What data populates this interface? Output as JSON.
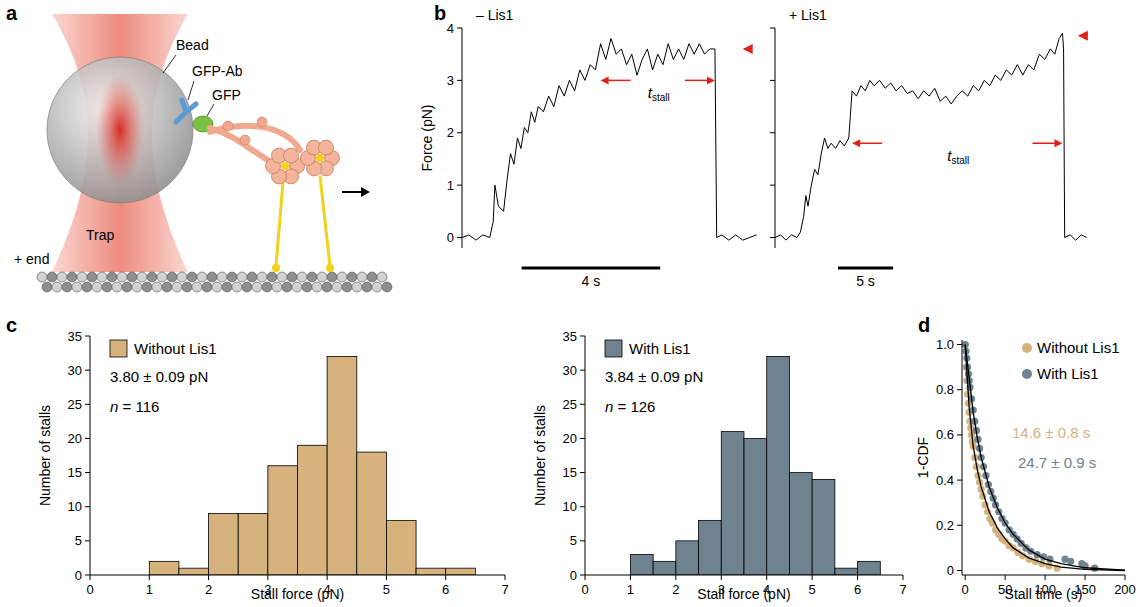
{
  "diagram": {
    "panel": "a",
    "labels": {
      "bead": "Bead",
      "antibody": "GFP-Ab",
      "gfp": "GFP",
      "trap": "Trap",
      "plus_end": "+ end"
    }
  },
  "chart_data": [
    {
      "panel": "b",
      "type": "line",
      "title": "– Lis1",
      "ylabel": "Force (pN)",
      "color": "#000000",
      "x": [
        0,
        0.2,
        0.4,
        0.6,
        0.8,
        0.9,
        0.95,
        1.05,
        1.2,
        1.3,
        1.4,
        1.5,
        1.6,
        1.7,
        1.8,
        1.9,
        2.0,
        2.1,
        2.2,
        2.35,
        2.5,
        2.65,
        2.8,
        2.95,
        3.1,
        3.25,
        3.4,
        3.55,
        3.7,
        3.85,
        4.0,
        4.15,
        4.3,
        4.45,
        4.6,
        4.75,
        4.9,
        5.05,
        5.2,
        5.35,
        5.5,
        5.65,
        5.8,
        5.95,
        6.1,
        6.25,
        6.4,
        6.55,
        6.7,
        6.85,
        7.0,
        7.15,
        7.3,
        7.35,
        7.5,
        7.7,
        7.9,
        8.1,
        8.3,
        8.5
      ],
      "values": [
        0.0,
        0.05,
        -0.05,
        0.05,
        0.0,
        0.3,
        1.0,
        0.6,
        0.5,
        1.1,
        1.6,
        1.4,
        1.9,
        1.7,
        2.1,
        2.0,
        2.4,
        2.2,
        2.5,
        2.4,
        2.7,
        2.5,
        2.9,
        2.7,
        3.0,
        2.8,
        3.2,
        3.0,
        3.3,
        3.2,
        3.7,
        3.4,
        3.8,
        3.5,
        3.6,
        3.3,
        3.5,
        3.1,
        3.4,
        3.6,
        3.2,
        3.5,
        3.3,
        3.7,
        3.4,
        3.6,
        3.4,
        3.7,
        3.5,
        3.7,
        3.5,
        3.6,
        3.6,
        0.0,
        0.05,
        -0.05,
        0.05,
        -0.05,
        0.0,
        0.05
      ],
      "xlim": [
        0,
        8.6
      ],
      "ylim": [
        -0.2,
        4
      ],
      "yticks": [
        0,
        1,
        2,
        3,
        4
      ],
      "tick_labels": "y",
      "scale_bar": {
        "length": 4,
        "label": "4 s"
      },
      "stall": {
        "start": 4.0,
        "end": 7.3,
        "force": 3.0,
        "label": "t",
        "label_sub": "stall",
        "color": "#e0201b"
      },
      "stall_marker": {
        "x": 8.1,
        "y": 3.6,
        "color": "#e0201b"
      }
    },
    {
      "type": "line",
      "title": "+ Lis1",
      "color": "#000000",
      "x": [
        0,
        0.5,
        1.0,
        1.5,
        2.0,
        2.3,
        2.6,
        2.8,
        3.0,
        3.3,
        3.6,
        3.9,
        4.2,
        4.5,
        4.8,
        5.1,
        5.5,
        5.9,
        6.3,
        6.7,
        7.0,
        7.4,
        7.8,
        8.2,
        8.6,
        9.0,
        9.5,
        10.0,
        10.5,
        11.0,
        11.5,
        12.0,
        12.5,
        13.0,
        13.5,
        14.0,
        14.5,
        15.0,
        15.5,
        16.0,
        16.5,
        17.0,
        17.5,
        18.0,
        18.5,
        19.0,
        19.5,
        20.0,
        20.5,
        21.0,
        21.5,
        22.0,
        22.5,
        23.0,
        23.5,
        24.0,
        24.5,
        25.0,
        25.4,
        25.8,
        26.1,
        26.2,
        26.3,
        26.8,
        27.3,
        27.8,
        28.3
      ],
      "values": [
        0,
        0.05,
        -0.05,
        0.05,
        0.0,
        0.1,
        0.4,
        0.8,
        0.6,
        1.0,
        1.3,
        1.2,
        1.6,
        1.9,
        1.7,
        1.8,
        1.7,
        1.85,
        1.75,
        1.9,
        2.8,
        2.7,
        2.9,
        2.8,
        3.0,
        2.9,
        3.0,
        2.85,
        2.95,
        2.8,
        2.9,
        2.75,
        2.8,
        2.65,
        2.8,
        2.7,
        2.85,
        2.6,
        2.7,
        2.55,
        2.7,
        2.8,
        2.7,
        2.9,
        2.8,
        3.0,
        2.9,
        3.1,
        3.0,
        3.2,
        3.1,
        3.3,
        3.1,
        3.3,
        3.2,
        3.5,
        3.4,
        3.6,
        3.5,
        3.8,
        3.9,
        3.6,
        0.0,
        0.05,
        -0.05,
        0.05,
        0.0
      ],
      "xlim": [
        0,
        28.6
      ],
      "ylim": [
        -0.2,
        4
      ],
      "yticks": [
        0,
        1,
        2,
        3,
        4
      ],
      "tick_labels": false,
      "scale_bar": {
        "length": 5,
        "label": "5 s"
      },
      "stall": {
        "start": 7.0,
        "end": 26.1,
        "force": 1.8,
        "label": "t",
        "label_sub": "stall",
        "color": "#e0201b"
      },
      "stall_marker": {
        "x": 27.5,
        "y": 3.85,
        "color": "#e0201b"
      }
    },
    {
      "panel": "c",
      "type": "histogram",
      "name": "Without Lis1",
      "color": "#d6b27c",
      "xlabel": "Stall force (pN)",
      "ylabel": "Number of stalls",
      "bins": [
        1,
        1.5,
        2,
        2.5,
        3,
        3.5,
        4,
        4.5,
        5,
        5.5,
        6,
        6.5
      ],
      "values": [
        2,
        1,
        9,
        9,
        16,
        19,
        32,
        18,
        8,
        1,
        1
      ],
      "xlim": [
        0,
        7
      ],
      "ylim": [
        0,
        35
      ],
      "xticks": [
        0,
        1,
        2,
        3,
        4,
        5,
        6,
        7
      ],
      "yticks": [
        0,
        5,
        10,
        15,
        20,
        25,
        30,
        35
      ],
      "legend": "upper left",
      "annotations": [
        "3.80 ± 0.09 pN",
        "n = 116"
      ]
    },
    {
      "type": "histogram",
      "name": "With Lis1",
      "color": "#6e8290",
      "xlabel": "Stall force (pN)",
      "ylabel": "Number of stalls",
      "bins": [
        1,
        1.5,
        2,
        2.5,
        3,
        3.5,
        4,
        4.5,
        5,
        5.5,
        6,
        6.5
      ],
      "values": [
        3,
        2,
        5,
        8,
        21,
        20,
        32,
        15,
        14,
        1,
        2
      ],
      "xlim": [
        0,
        7
      ],
      "ylim": [
        0,
        35
      ],
      "xticks": [
        0,
        1,
        2,
        3,
        4,
        5,
        6,
        7
      ],
      "yticks": [
        0,
        5,
        10,
        15,
        20,
        25,
        30,
        35
      ],
      "legend": "upper left",
      "annotations": [
        "3.84 ± 0.09 pN",
        "n = 126"
      ]
    },
    {
      "panel": "d",
      "type": "scatter",
      "xlabel": "Stall time (s)",
      "ylabel": "1-CDF",
      "xlim": [
        -4,
        200
      ],
      "ylim": [
        -0.02,
        1.02
      ],
      "xticks": [
        0,
        50,
        100,
        150,
        200
      ],
      "yticks": [
        0,
        0.2,
        0.4,
        0.6,
        0.8,
        {
          "value": 1,
          "label": "1.0"
        }
      ],
      "legend": "upper right",
      "series": [
        {
          "name": "Without Lis1",
          "color": "#d6b27c",
          "marker": "circle",
          "annotation": "14.6 ± 0.8 s",
          "x": [
            0,
            1,
            2,
            3,
            4,
            5,
            6,
            7,
            8,
            9,
            10,
            12,
            14,
            16,
            18,
            20,
            22,
            25,
            28,
            31,
            34,
            38,
            42,
            46,
            50,
            55,
            60,
            66,
            72,
            80,
            88,
            96,
            105,
            115
          ],
          "values": [
            1.0,
            0.9,
            0.84,
            0.78,
            0.74,
            0.7,
            0.66,
            0.63,
            0.6,
            0.57,
            0.55,
            0.5,
            0.46,
            0.42,
            0.39,
            0.36,
            0.33,
            0.29,
            0.26,
            0.23,
            0.21,
            0.18,
            0.16,
            0.14,
            0.13,
            0.11,
            0.1,
            0.08,
            0.065,
            0.05,
            0.04,
            0.03,
            0.02,
            0.01
          ]
        },
        {
          "name": "With Lis1",
          "color": "#6e8290",
          "marker": "circle",
          "annotation": "24.7 ± 0.9 s",
          "x": [
            0,
            1,
            2,
            3,
            4,
            5,
            6,
            8,
            10,
            12,
            14,
            16,
            18,
            20,
            23,
            26,
            29,
            32,
            35,
            38,
            42,
            46,
            50,
            55,
            60,
            65,
            70,
            76,
            82,
            90,
            98,
            106,
            125,
            132,
            146,
            150,
            162
          ],
          "values": [
            1.0,
            0.97,
            0.94,
            0.9,
            0.87,
            0.84,
            0.81,
            0.76,
            0.71,
            0.66,
            0.62,
            0.58,
            0.54,
            0.5,
            0.46,
            0.42,
            0.38,
            0.35,
            0.32,
            0.29,
            0.26,
            0.23,
            0.21,
            0.18,
            0.16,
            0.14,
            0.12,
            0.1,
            0.085,
            0.07,
            0.06,
            0.05,
            0.05,
            0.04,
            0.03,
            0.02,
            0.01
          ]
        },
        {
          "type": "line",
          "color": "#000000",
          "line_style": "solid",
          "x": [
            0,
            5,
            10,
            15,
            20,
            30,
            40,
            50,
            60,
            80,
            100,
            120,
            150,
            200
          ],
          "values": [
            1.0,
            0.72,
            0.55,
            0.45,
            0.37,
            0.26,
            0.19,
            0.14,
            0.1,
            0.055,
            0.03,
            0.015,
            0.005,
            0.0
          ]
        },
        {
          "type": "line",
          "color": "#000000",
          "line_style": "solid",
          "x": [
            0,
            5,
            10,
            15,
            20,
            30,
            40,
            50,
            60,
            80,
            100,
            120,
            150,
            200
          ],
          "values": [
            1.0,
            0.85,
            0.7,
            0.59,
            0.5,
            0.37,
            0.28,
            0.21,
            0.16,
            0.09,
            0.05,
            0.03,
            0.012,
            0.002
          ]
        }
      ]
    }
  ]
}
